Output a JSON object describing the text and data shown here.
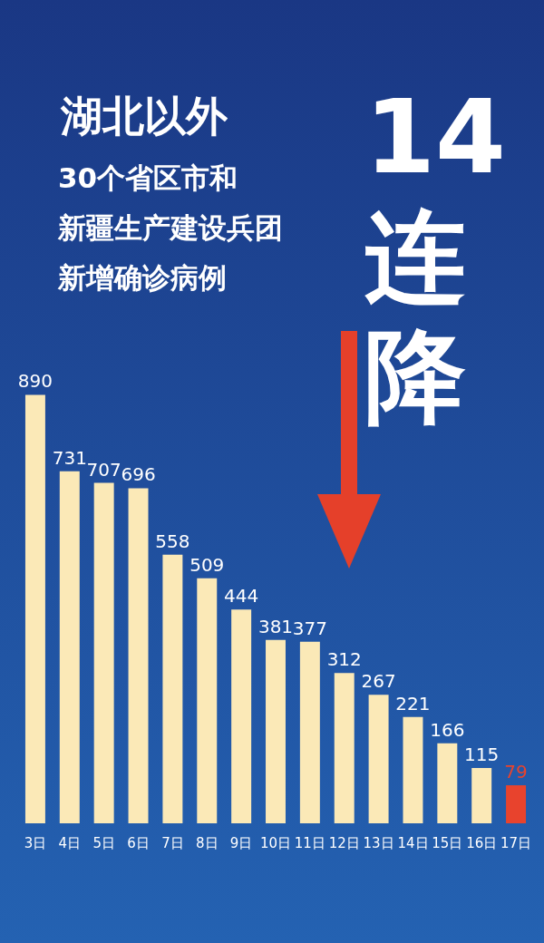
{
  "chart_data": {
    "type": "bar",
    "title": "湖北以外",
    "annotations": [
      "30个省区市和",
      "新疆生产建设兵团",
      "新增确诊病例",
      "14连降"
    ],
    "categories": [
      "3日",
      "4日",
      "5日",
      "6日",
      "7日",
      "8日",
      "9日",
      "10日",
      "11日",
      "12日",
      "13日",
      "14日",
      "15日",
      "16日",
      "17日"
    ],
    "values": [
      890,
      731,
      707,
      696,
      558,
      509,
      444,
      381,
      377,
      312,
      267,
      221,
      166,
      115,
      79
    ],
    "colors": [
      "#fbe9b7",
      "#fbe9b7",
      "#fbe9b7",
      "#fbe9b7",
      "#fbe9b7",
      "#fbe9b7",
      "#fbe9b7",
      "#fbe9b7",
      "#fbe9b7",
      "#fbe9b7",
      "#fbe9b7",
      "#fbe9b7",
      "#fbe9b7",
      "#fbe9b7",
      "#e8432d"
    ],
    "data_labels": true,
    "grid": false
  }
}
